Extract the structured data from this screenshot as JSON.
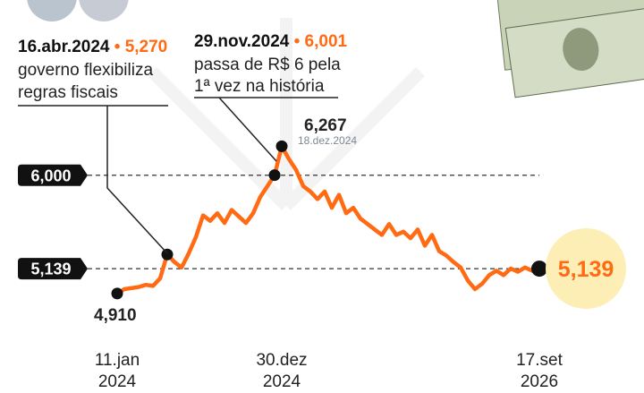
{
  "chart_data": {
    "type": "line",
    "categories": [
      "11.jan 2024",
      null,
      null,
      null,
      null,
      null,
      null,
      null,
      null,
      null,
      null,
      null,
      null,
      null,
      null,
      null,
      null,
      null,
      null,
      null,
      null,
      null,
      null,
      "30.dez 2024",
      null,
      null,
      null,
      null,
      null,
      null,
      null,
      null,
      null,
      null,
      null,
      null,
      null,
      null,
      null,
      null,
      null,
      null,
      null,
      null,
      null,
      null,
      null,
      null,
      null,
      null,
      null,
      null,
      null,
      null,
      null,
      null,
      null,
      null,
      null,
      "17.set 2026"
    ],
    "series": [
      {
        "color": "#ff6a13",
        "values": [
          4910,
          4950,
          4960,
          4970,
          4990,
          4980,
          5050,
          5270,
          5200,
          5150,
          5280,
          5430,
          5630,
          5580,
          5650,
          5560,
          5680,
          5620,
          5560,
          5650,
          5800,
          5900,
          6001,
          6267,
          6150,
          6050,
          5900,
          5850,
          5780,
          5850,
          5700,
          5820,
          5650,
          5700,
          5600,
          5550,
          5500,
          5450,
          5550,
          5450,
          5480,
          5420,
          5500,
          5350,
          5450,
          5300,
          5260,
          5200,
          5150,
          5030,
          4950,
          5000,
          5080,
          5120,
          5080,
          5140,
          5110,
          5150,
          5120,
          5139
        ]
      }
    ],
    "ylim": [
      4480,
      6790
    ],
    "yticks": [
      {
        "value": 6000,
        "label": "6,000"
      },
      {
        "value": 5139,
        "label": "5,139"
      }
    ],
    "separator": "•",
    "annotations": [
      {
        "date": "16.abr.2024",
        "value": 5270,
        "label": "5,270",
        "text": [
          "governo flexibiliza",
          "regras fiscais"
        ]
      },
      {
        "date": "29.nov.2024",
        "value": 6001,
        "label": "6,001",
        "text": [
          "passa de R$ 6 pela",
          "1ª vez na história"
        ]
      }
    ],
    "peak": {
      "value": 6267,
      "label": "6,267",
      "date": "18.dez.2024"
    },
    "start": {
      "value": 4910,
      "label": "4,910"
    },
    "last": {
      "value": 5139,
      "label": "5,139"
    }
  }
}
